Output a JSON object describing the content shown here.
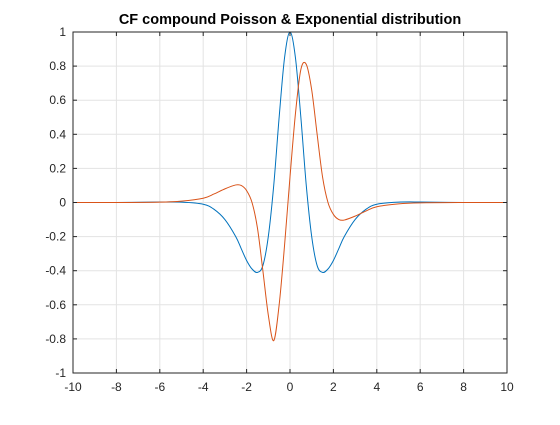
{
  "chart_data": {
    "type": "line",
    "title": "CF compound Poisson & Exponential distribution",
    "xlabel": "",
    "ylabel": "",
    "xlim": [
      -10,
      10
    ],
    "ylim": [
      -1,
      1
    ],
    "xticks": [
      -10,
      -8,
      -6,
      -4,
      -2,
      0,
      2,
      4,
      6,
      8,
      10
    ],
    "yticks": [
      -1,
      -0.8,
      -0.6,
      -0.4,
      -0.2,
      0,
      0.2,
      0.4,
      0.6,
      0.8,
      1
    ],
    "grid": true,
    "legend": "none",
    "x": [
      -10,
      -8,
      -6,
      -5,
      -4,
      -3.5,
      -3,
      -2.5,
      -2.25,
      -2,
      -1.75,
      -1.5,
      -1.25,
      -1,
      -0.75,
      -0.5,
      -0.25,
      0,
      0.25,
      0.5,
      0.75,
      1,
      1.25,
      1.5,
      1.75,
      2,
      2.25,
      2.5,
      3,
      3.5,
      4,
      5,
      6,
      8,
      10
    ],
    "series": [
      {
        "color": "#0072BD",
        "values": [
          0,
          0,
          0.003,
          0.002,
          -0.01,
          -0.04,
          -0.1,
          -0.2,
          -0.27,
          -0.34,
          -0.39,
          -0.41,
          -0.37,
          -0.2,
          0.1,
          0.5,
          0.85,
          1,
          0.85,
          0.5,
          0.1,
          -0.2,
          -0.37,
          -0.41,
          -0.39,
          -0.34,
          -0.27,
          -0.2,
          -0.1,
          -0.04,
          -0.01,
          0.002,
          0.003,
          0,
          0
        ]
      },
      {
        "color": "#D95319",
        "values": [
          0,
          0,
          0.002,
          0.008,
          0.025,
          0.05,
          0.08,
          0.103,
          0.1,
          0.07,
          0,
          -0.15,
          -0.4,
          -0.66,
          -0.81,
          -0.6,
          -0.25,
          0.15,
          0.52,
          0.78,
          0.81,
          0.66,
          0.4,
          0.15,
          0,
          -0.07,
          -0.1,
          -0.103,
          -0.08,
          -0.05,
          -0.025,
          -0.008,
          -0.002,
          0,
          0
        ]
      }
    ]
  }
}
